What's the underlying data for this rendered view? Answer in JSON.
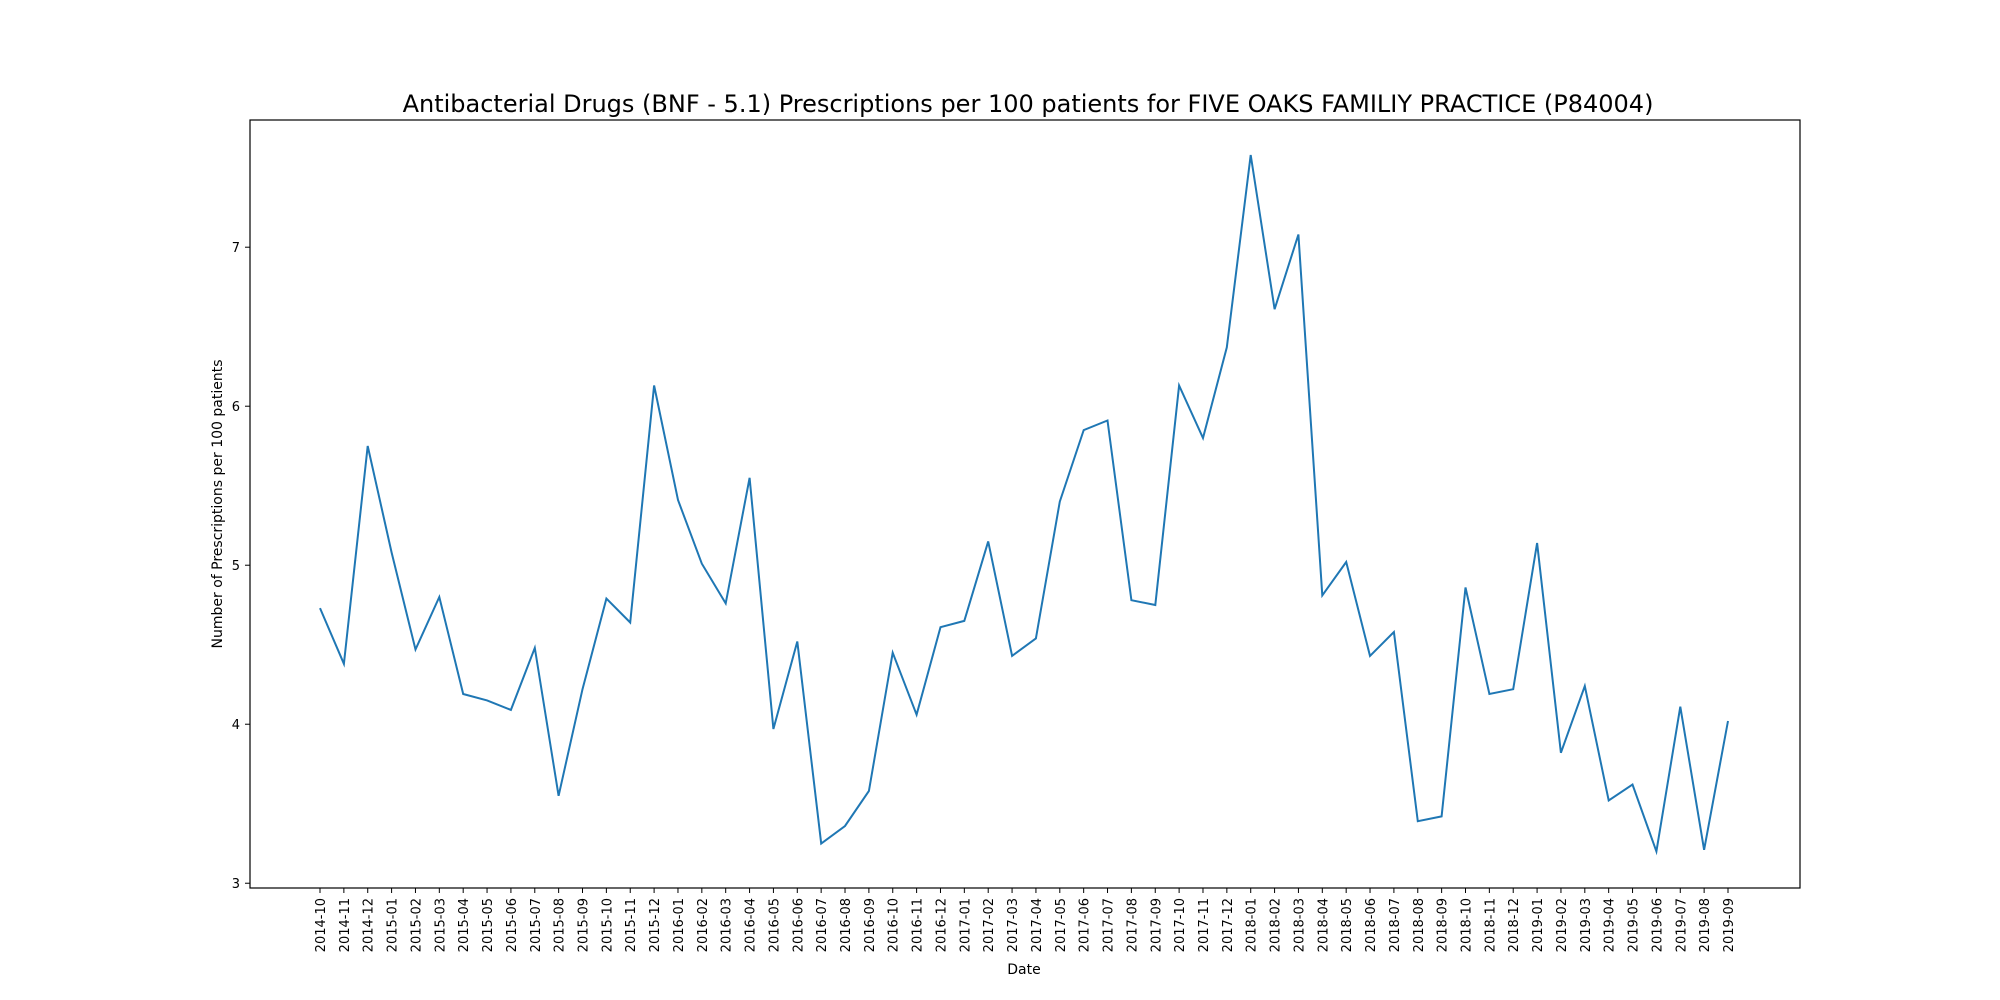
{
  "chart_data": {
    "type": "line",
    "title": "Antibacterial Drugs (BNF - 5.1) Prescriptions per 100 patients for FIVE OAKS FAMILIY PRACTICE (P84004)",
    "xlabel": "Date",
    "ylabel": "Number of Prescriptions per 100 patients",
    "ylim": [
      2.97,
      7.8
    ],
    "y_ticks": [
      3,
      4,
      5,
      6,
      7
    ],
    "grid": false,
    "line_color": "#1f77b4",
    "x": [
      "2014-10",
      "2014-11",
      "2014-12",
      "2015-01",
      "2015-02",
      "2015-03",
      "2015-04",
      "2015-05",
      "2015-06",
      "2015-07",
      "2015-08",
      "2015-09",
      "2015-10",
      "2015-11",
      "2015-12",
      "2016-01",
      "2016-02",
      "2016-03",
      "2016-04",
      "2016-05",
      "2016-06",
      "2016-07",
      "2016-08",
      "2016-09",
      "2016-10",
      "2016-11",
      "2016-12",
      "2017-01",
      "2017-02",
      "2017-03",
      "2017-04",
      "2017-05",
      "2017-06",
      "2017-07",
      "2017-08",
      "2017-09",
      "2017-10",
      "2017-11",
      "2017-12",
      "2018-01",
      "2018-02",
      "2018-03",
      "2018-04",
      "2018-05",
      "2018-06",
      "2018-07",
      "2018-08",
      "2018-09",
      "2018-10",
      "2018-11",
      "2018-12",
      "2019-01",
      "2019-02",
      "2019-03",
      "2019-04",
      "2019-05",
      "2019-06",
      "2019-07",
      "2019-08",
      "2019-09"
    ],
    "series": [
      {
        "values": [
          4.73,
          4.38,
          5.75,
          5.08,
          4.47,
          4.8,
          4.19,
          4.15,
          4.09,
          4.48,
          3.55,
          4.22,
          4.79,
          4.64,
          6.13,
          5.41,
          5.01,
          4.76,
          5.55,
          3.97,
          4.52,
          3.25,
          3.36,
          3.58,
          4.45,
          4.06,
          4.61,
          4.65,
          5.15,
          4.43,
          4.54,
          5.4,
          5.85,
          5.91,
          4.78,
          4.75,
          6.13,
          5.8,
          6.37,
          7.58,
          6.61,
          7.08,
          4.81,
          5.02,
          4.43,
          4.58,
          3.39,
          3.42,
          4.86,
          4.19,
          4.22,
          5.14,
          3.82,
          4.24,
          3.52,
          3.62,
          3.2,
          4.11,
          3.21,
          4.02
        ]
      }
    ]
  }
}
